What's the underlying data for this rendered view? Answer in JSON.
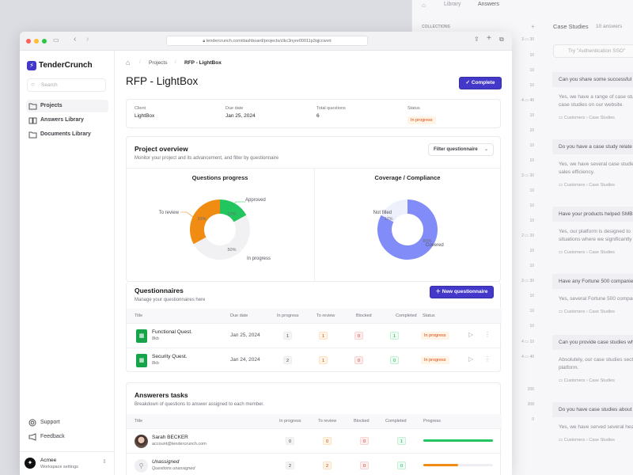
{
  "background_app": {
    "nav": [
      "Library",
      "Answers"
    ],
    "collections_label": "COLLECTIONS",
    "title": "Case Studies",
    "count": "10 answers",
    "search_placeholder": "Try \"Authentication SSO\"",
    "counts": [
      "30",
      "10",
      "10",
      "10",
      "40",
      "10",
      "10",
      "10",
      "10",
      "30",
      "10",
      "10",
      "10",
      "20",
      "10",
      "10",
      "30",
      "10",
      "10",
      "10",
      "10",
      "40",
      "206",
      "308",
      "0"
    ],
    "count_prefixes": {
      "0": "3",
      "4": "4",
      "9": "3",
      "13": "2",
      "16": "3",
      "20": "4",
      "21": "4"
    },
    "answers": [
      {
        "q": "Can you share some successful",
        "a": [
          "Yes, we have a range of case stu",
          "case studies on our website."
        ]
      },
      {
        "q": "Do you have a case study relate",
        "a": [
          "Yes, we have several case studie",
          "sales efficiency."
        ]
      },
      {
        "q": "Have your products helped SMB",
        "a": [
          "Yes, our platform is designed to",
          "situations where we significantly"
        ]
      },
      {
        "q": "Have any Fortune 500 companie",
        "a": [
          "Yes, several Fortune 500 compan"
        ]
      },
      {
        "q": "Can you provide case studies wh",
        "a": [
          "Absolutely, our case studies sect",
          "platform."
        ]
      },
      {
        "q": "Do you have case studies about",
        "a": [
          "Yes, we have served several hea"
        ]
      }
    ],
    "path": [
      "Customers",
      "Case Studies"
    ]
  },
  "browser": {
    "url": "tendercrunch.com/dashboard/projects/clkc3nyre00011p3qjccwvrt"
  },
  "sidebar": {
    "brand": "TenderCrunch",
    "search_placeholder": "Search",
    "items": [
      {
        "label": "Projects"
      },
      {
        "label": "Answers Library"
      },
      {
        "label": "Documents Library"
      }
    ],
    "support": "Support",
    "feedback": "Feedback",
    "workspace": {
      "name": "Acmee",
      "sub": "Workspace settings"
    }
  },
  "breadcrumb": [
    "Projects",
    "RFP - LightBox"
  ],
  "page": {
    "title": "RFP - LightBox",
    "complete_label": "Complete"
  },
  "summary": [
    {
      "label": "Client",
      "value": "LightBox"
    },
    {
      "label": "Due date",
      "value": "Jan 25, 2024"
    },
    {
      "label": "Total questions",
      "value": "6"
    },
    {
      "label": "Status",
      "value": "In progress"
    }
  ],
  "overview": {
    "title": "Project overview",
    "subtitle": "Monitor your project and its advancement, and filter by questionnaire",
    "filter_label": "Filter questionnaire"
  },
  "colors": {
    "accent": "#4338ca",
    "approved": "#22c55e",
    "to_review": "#f08c12",
    "in_progress": "#f1f1f4",
    "covered": "#818cf8",
    "not_filled": "#eef0fb"
  },
  "chart_data": [
    {
      "type": "pie",
      "title": "Questions progress",
      "categories": [
        "Approved",
        "In progress",
        "To review"
      ],
      "values": [
        17,
        50,
        33
      ],
      "labels": [
        "17%",
        "50%",
        "33%"
      ],
      "colors": [
        "#22c55e",
        "#f1f1f4",
        "#f08c12"
      ],
      "donut": true
    },
    {
      "type": "pie",
      "title": "Coverage / Compliance",
      "categories": [
        "Covered",
        "Not filled"
      ],
      "values": [
        83,
        17
      ],
      "labels": [
        "83%",
        "17%"
      ],
      "colors": [
        "#818cf8",
        "#eef0fb"
      ],
      "donut": true
    }
  ],
  "questionnaires": {
    "title": "Questionnaires",
    "subtitle": "Manage your questionnaires here",
    "new_label": "New questionnaire",
    "columns": [
      "Title",
      "Due date",
      "In progress",
      "To review",
      "Blocked",
      "Completed",
      "Status"
    ],
    "rows": [
      {
        "name": "Functional Quest.",
        "size": "8kb",
        "due": "Jan 25, 2024",
        "in_progress": "1",
        "to_review": "1",
        "blocked": "0",
        "completed": "1",
        "status": "In progress"
      },
      {
        "name": "Security Quest.",
        "size": "8kb",
        "due": "Jan 24, 2024",
        "in_progress": "2",
        "to_review": "1",
        "blocked": "0",
        "completed": "0",
        "status": "In progress"
      }
    ]
  },
  "answerers": {
    "title": "Answerers tasks",
    "subtitle": "Breakdown of questions to answer assigned to each member.",
    "columns": [
      "Title",
      "In progress",
      "To review",
      "Blocked",
      "Completed",
      "Progress"
    ],
    "rows": [
      {
        "name": "Sarah BECKER",
        "sub": "account@tendercrunch.com",
        "in_progress": "0",
        "to_review": "0",
        "blocked": "0",
        "completed": "1",
        "progress": 100,
        "color": "#22c55e"
      },
      {
        "name": "Unassigned",
        "sub": "Questions unassigned",
        "in_progress": "2",
        "to_review": "2",
        "blocked": "0",
        "completed": "0",
        "progress": 50,
        "color": "#f08c12"
      }
    ]
  }
}
